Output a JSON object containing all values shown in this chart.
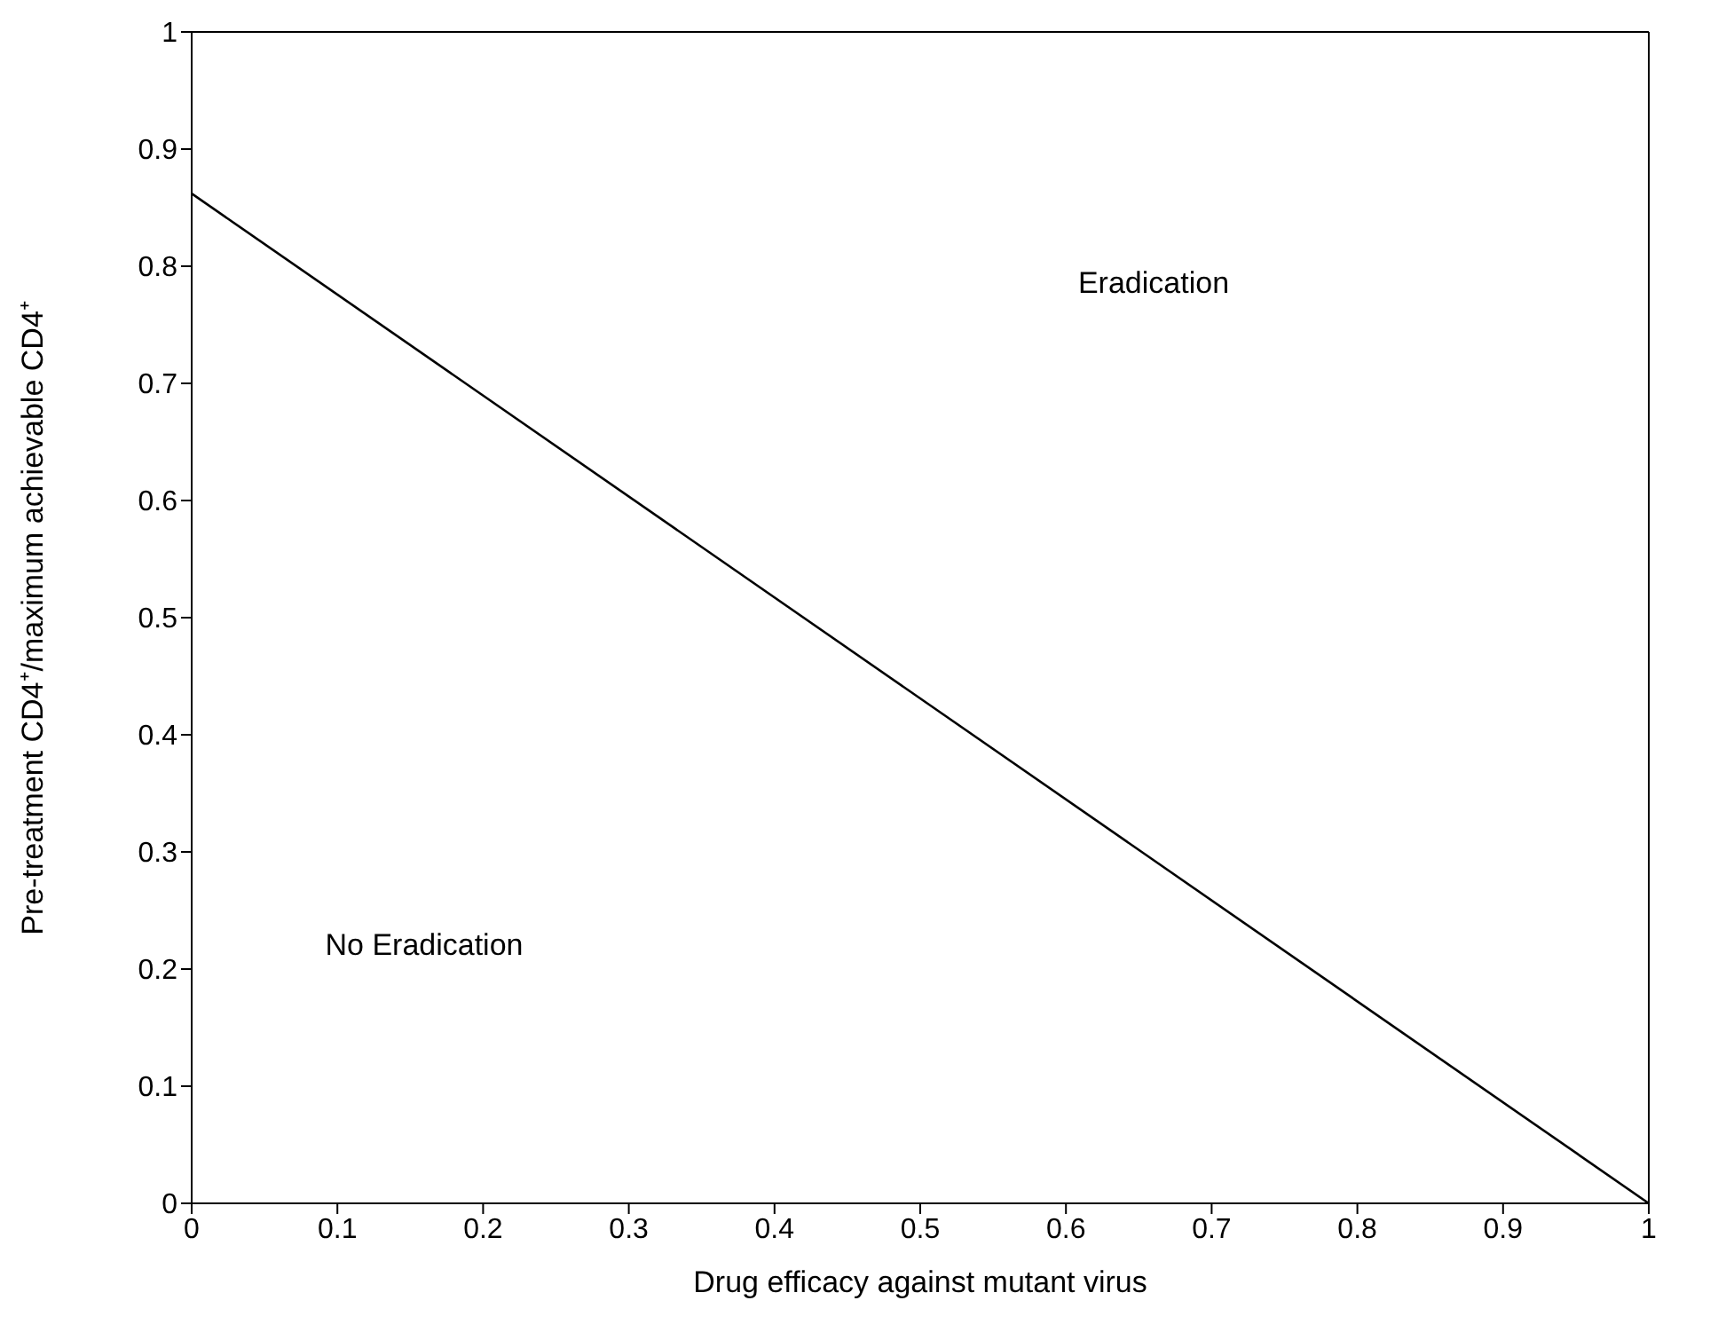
{
  "chart_data": {
    "type": "line",
    "xlabel": "Drug efficacy against mutant virus",
    "ylabel": "Pre-treatment CD4⁺/maximum achievable CD4⁺",
    "x": [
      0,
      1
    ],
    "values": [
      0.862,
      0
    ],
    "color": "#000000",
    "marker": "none",
    "line_style": "solid",
    "xlim": [
      0,
      1
    ],
    "ylim": [
      0,
      1
    ],
    "xticks": [
      0,
      0.1,
      0.2,
      0.3,
      0.4,
      0.5,
      0.6,
      0.7,
      0.8,
      0.9,
      1
    ],
    "yticks": [
      0,
      0.1,
      0.2,
      0.3,
      0.4,
      0.5,
      0.6,
      0.7,
      0.8,
      0.9,
      1
    ],
    "grid": false,
    "legend": false,
    "annotations": [
      "Eradication",
      "No Eradication"
    ]
  }
}
